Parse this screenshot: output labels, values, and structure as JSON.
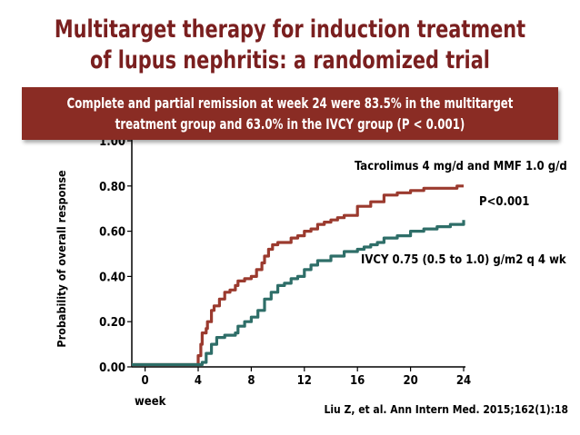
{
  "title": "Multitarget therapy for induction treatment of lupus nephritis: a randomized trial",
  "banner": "Complete and partial remission at week 24 were 83.5% in the multitarget treatment group and 63.0% in the IVCY group (P < 0.001)",
  "citation": "Liu Z, et al. Ann Intern Med. 2015;162(1):18",
  "colors": {
    "title": "#7a1f1f",
    "banner_bg": "#8a2c24",
    "multitarget": "#9b3a2e",
    "ivcy": "#2e6e68"
  },
  "chart_data": {
    "type": "line",
    "xlabel": "week",
    "ylabel": "Probability of overall response",
    "xlim": [
      -1,
      24
    ],
    "ylim": [
      0,
      1.0
    ],
    "x_ticks": [
      "0",
      "4",
      "8",
      "12",
      "16",
      "20",
      "24"
    ],
    "y_ticks": [
      "0.00",
      "0.20",
      "0.40",
      "0.60",
      "0.80",
      "1.00"
    ],
    "grid": false,
    "p_value": "P<0.001",
    "series": [
      {
        "name": "Tacrolimus 4 mg/d and MMF 1.0 g/d",
        "color": "#9b3a2e",
        "x": [
          -1,
          4,
          4,
          4.2,
          4.3,
          4.6,
          4.7,
          5.0,
          5.2,
          5.6,
          6.0,
          6.4,
          6.8,
          7.0,
          7.5,
          8.0,
          8.4,
          8.8,
          9.0,
          9.3,
          9.6,
          10.0,
          10.5,
          11.0,
          11.5,
          12.0,
          12.5,
          13.0,
          13.5,
          14.0,
          14.5,
          15.0,
          16.0,
          17.0,
          18.0,
          19.0,
          20.0,
          21.0,
          22.0,
          23.0,
          23.5,
          24.0
        ],
        "y": [
          0.01,
          0.01,
          0.05,
          0.1,
          0.15,
          0.17,
          0.2,
          0.25,
          0.27,
          0.3,
          0.33,
          0.34,
          0.36,
          0.38,
          0.39,
          0.4,
          0.43,
          0.46,
          0.49,
          0.52,
          0.54,
          0.55,
          0.55,
          0.57,
          0.58,
          0.6,
          0.61,
          0.63,
          0.64,
          0.65,
          0.66,
          0.67,
          0.71,
          0.73,
          0.76,
          0.77,
          0.78,
          0.79,
          0.79,
          0.79,
          0.8,
          0.8
        ]
      },
      {
        "name": "IVCY 0.75 (0.5 to 1.0) g/m2 q 4 wk",
        "color": "#2e6e68",
        "x": [
          -1,
          4,
          4.3,
          4.6,
          5.0,
          5.4,
          6.0,
          6.8,
          7.0,
          7.5,
          8.0,
          8.5,
          9.0,
          9.5,
          10.0,
          10.5,
          11.0,
          11.5,
          12.0,
          12.5,
          13.0,
          14.0,
          15.0,
          16.0,
          16.5,
          17.0,
          17.5,
          18.0,
          19.0,
          20.0,
          21.0,
          22.0,
          23.0,
          24.0
        ],
        "y": [
          0.01,
          0.01,
          0.02,
          0.06,
          0.1,
          0.13,
          0.14,
          0.15,
          0.18,
          0.2,
          0.22,
          0.25,
          0.3,
          0.33,
          0.36,
          0.37,
          0.39,
          0.4,
          0.43,
          0.45,
          0.47,
          0.49,
          0.51,
          0.52,
          0.53,
          0.54,
          0.55,
          0.57,
          0.58,
          0.6,
          0.61,
          0.62,
          0.63,
          0.65
        ]
      }
    ]
  }
}
